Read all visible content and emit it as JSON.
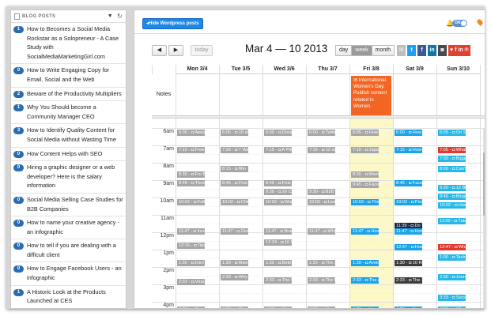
{
  "sidebar": {
    "title": "BLOG POSTS",
    "items": [
      {
        "count": "1",
        "text": "How to Becomes a Social Media Rockstar as a Solopreneur - A Case Study with SocialMediaMarketingGirl.com"
      },
      {
        "count": "0",
        "text": "How to Write Engaging Copy for Email, Social and the Web"
      },
      {
        "count": "2",
        "text": "Beware of the Productivity Multipliers"
      },
      {
        "count": "1",
        "text": "Why You Should become a Community Manager CEO"
      },
      {
        "count": "3",
        "text": "How to Identify Quality Content for Social Media without Wasting Time"
      },
      {
        "count": "0",
        "text": "How Content Helps with SEO"
      },
      {
        "count": "0",
        "text": "Hiring a graphic designer or a web developer? Here is the salary information"
      },
      {
        "count": "0",
        "text": "Social Media Selling Case Studies for B2B Companies"
      },
      {
        "count": "0",
        "text": "How to name your creative agency - an infographic"
      },
      {
        "count": "0",
        "text": "How to tell if you are dealing with a difficult client"
      },
      {
        "count": "0",
        "text": "How to Engage Facebook Users - an infographic"
      },
      {
        "count": "1",
        "text": "A Historic Look at the Products Launched at CES"
      }
    ]
  },
  "topbar": {
    "hide_button": "Hide Wordpress posts",
    "toggle": "ON"
  },
  "toolbar": {
    "prev": "◀",
    "next": "▶",
    "today": "today",
    "range_title": "Mar 4 — 10 2013",
    "views": [
      "day",
      "week",
      "month"
    ],
    "active_view": "week",
    "socials": [
      {
        "label": "✉",
        "color": "#bdbdbd"
      },
      {
        "label": "t",
        "color": "#1da1f2"
      },
      {
        "label": "f",
        "color": "#3b5998"
      },
      {
        "label": "in",
        "color": "#0e76a8"
      },
      {
        "label": "◙",
        "color": "#4a4a4a"
      },
      {
        "label": "♥ f in ℗",
        "color": "#e0402e"
      }
    ]
  },
  "calendar": {
    "notes_label": "Notes",
    "days": [
      "Mon 3/4",
      "Tue 3/5",
      "Wed 3/6",
      "Thu 3/7",
      "Fri 3/8",
      "Sat 3/9",
      "Sun 3/10"
    ],
    "hours": [
      "6am",
      "7am",
      "8am",
      "9am",
      "10am",
      "11am",
      "12pm",
      "1pm",
      "2pm",
      "3pm",
      "4pm"
    ],
    "note_event": "International Women's Day. Publish content related to Women.",
    "events": [
      {
        "day": 0,
        "hour": 6.0,
        "text": "6:00 - ◘ Awesom",
        "style": "gray"
      },
      {
        "day": 0,
        "hour": 7.0,
        "text": "7:15 - ◘ Free eB",
        "style": "gray"
      },
      {
        "day": 0,
        "hour": 8.4,
        "text": "8:30 - ◘ For B2B",
        "style": "gray"
      },
      {
        "day": 0,
        "hour": 8.9,
        "text": "8:45 - ◘ Three P",
        "style": "gray"
      },
      {
        "day": 0,
        "hour": 10.0,
        "text": "10:02 - ◘ Follow",
        "style": "gray"
      },
      {
        "day": 0,
        "hour": 11.7,
        "text": "11:47 - ◘ Invest",
        "style": "gray"
      },
      {
        "day": 0,
        "hour": 12.5,
        "text": "12:15 - ◘ Tips",
        "style": "gray"
      },
      {
        "day": 0,
        "hour": 13.5,
        "text": "1:30 - ◘ Intro t",
        "style": "gray"
      },
      {
        "day": 0,
        "hour": 14.6,
        "text": "2:33 - ◘ Viral Vid",
        "style": "gray"
      },
      {
        "day": 0,
        "hour": 16.2,
        "text": "4:00 - ◘ Dos",
        "style": "gray"
      },
      {
        "day": 1,
        "hour": 6.0,
        "text": "6:05 - ◘ 10 ste",
        "style": "gray"
      },
      {
        "day": 1,
        "hour": 7.0,
        "text": "7:30 - ◘ 7 Ways",
        "style": "gray"
      },
      {
        "day": 1,
        "hour": 8.1,
        "text": "8:15 - ◘ Min",
        "style": "gray"
      },
      {
        "day": 1,
        "hour": 8.9,
        "text": "8:45 - ◘ First Go",
        "style": "gray"
      },
      {
        "day": 1,
        "hour": 10.0,
        "text": "10:02 - ◘ Chine",
        "style": "gray"
      },
      {
        "day": 1,
        "hour": 11.7,
        "text": "11:47 - ◘ Giving",
        "style": "gray"
      },
      {
        "day": 1,
        "hour": 13.5,
        "text": "1:30 - ◘ Main st",
        "style": "gray"
      },
      {
        "day": 1,
        "hour": 14.3,
        "text": "2:33 - ◘ Why mi",
        "style": "gray"
      },
      {
        "day": 1,
        "hour": 16.2,
        "text": "4:00 - ◘ The 7 C",
        "style": "gray"
      },
      {
        "day": 2,
        "hour": 6.0,
        "text": "6:00 - ◘ Disney",
        "style": "gray"
      },
      {
        "day": 2,
        "hour": 7.0,
        "text": "7:15 - ◘ A Prime",
        "style": "gray"
      },
      {
        "day": 2,
        "hour": 8.9,
        "text": "8:45 - ◘ First Go",
        "style": "gray"
      },
      {
        "day": 2,
        "hour": 9.4,
        "text": "9:30 - ◘ 20 Cate",
        "style": "gray"
      },
      {
        "day": 2,
        "hour": 10.0,
        "text": "10:02 - ◘ Wome",
        "style": "gray"
      },
      {
        "day": 2,
        "hour": 11.7,
        "text": "11:47 - ◘ Brain",
        "style": "gray"
      },
      {
        "day": 2,
        "hour": 12.3,
        "text": "12:24 - ◘ 10 Su",
        "style": "gray"
      },
      {
        "day": 2,
        "hour": 13.5,
        "text": "1:30 - ◘ Beth Go",
        "style": "gray"
      },
      {
        "day": 2,
        "hour": 14.5,
        "text": "2:33 - ◘ The S",
        "style": "gray"
      },
      {
        "day": 2,
        "hour": 16.2,
        "text": "4:00 - ◘ Wome",
        "style": "gray"
      },
      {
        "day": 3,
        "hour": 6.0,
        "text": "6:00 - ◘ Twitter",
        "style": "gray"
      },
      {
        "day": 3,
        "hour": 7.0,
        "text": "7:15 - ◘ 12 soci",
        "style": "gray"
      },
      {
        "day": 3,
        "hour": 9.4,
        "text": "9:30 - ◘ B2B Lea",
        "style": "gray"
      },
      {
        "day": 3,
        "hour": 10.0,
        "text": "10:02 - ◘ Learn",
        "style": "gray"
      },
      {
        "day": 3,
        "hour": 11.7,
        "text": "11:47 - ◘ Why M",
        "style": "gray"
      },
      {
        "day": 3,
        "hour": 13.5,
        "text": "1:30 - ◘ The 3 G",
        "style": "gray"
      },
      {
        "day": 3,
        "hour": 14.5,
        "text": "2:33 - ◘ The Ne",
        "style": "gray"
      },
      {
        "day": 3,
        "hour": 16.2,
        "text": "4:00 - ◘ How C",
        "style": "gray"
      },
      {
        "day": 4,
        "hour": 6.0,
        "text": "6:05 - ◘ How to",
        "style": "gray"
      },
      {
        "day": 4,
        "hour": 7.0,
        "text": "7:15 - ◘ Japan",
        "style": "gray"
      },
      {
        "day": 4,
        "hour": 8.4,
        "text": "8:30 - ◘ Meet D",
        "style": "gray"
      },
      {
        "day": 4,
        "hour": 9.0,
        "text": "9:45 - ◘ Facebo",
        "style": "gray"
      },
      {
        "day": 4,
        "hour": 10.0,
        "text": "10:02 - ◘ The ret",
        "style": "blue"
      },
      {
        "day": 4,
        "hour": 11.7,
        "text": "11:47 - ◘ How to",
        "style": "blue"
      },
      {
        "day": 4,
        "hour": 13.5,
        "text": "1:30 - ◘ Avoidin",
        "style": "blue"
      },
      {
        "day": 4,
        "hour": 14.5,
        "text": "2:33 - ◘ The Adv",
        "style": "blue"
      },
      {
        "day": 4,
        "hour": 16.2,
        "text": "4:20 - ◘ How Go",
        "style": "blue"
      },
      {
        "day": 5,
        "hour": 6.0,
        "text": "6:00 - ◘ How to",
        "style": "blue"
      },
      {
        "day": 5,
        "hour": 7.0,
        "text": "7:15 - ◘ How Pe",
        "style": "blue"
      },
      {
        "day": 5,
        "hour": 8.9,
        "text": "8:45 - ◘ Facebo",
        "style": "blue"
      },
      {
        "day": 5,
        "hour": 10.0,
        "text": "10:02 - ◘ Pixar's",
        "style": "blue"
      },
      {
        "day": 5,
        "hour": 11.35,
        "text": "11:39 - ◘ Do You",
        "style": "navy"
      },
      {
        "day": 5,
        "hour": 11.7,
        "text": "11:47 - ◘ How to",
        "style": "blue"
      },
      {
        "day": 5,
        "hour": 12.6,
        "text": "12:47 - ◘ How to",
        "style": "blue"
      },
      {
        "day": 5,
        "hour": 13.5,
        "text": "1:30 - ◘ 10 Rea",
        "style": "dark"
      },
      {
        "day": 5,
        "hour": 14.5,
        "text": "2:33 - ◘ The 10",
        "style": "dark"
      },
      {
        "day": 5,
        "hour": 16.2,
        "text": "4:20 - ◘ You Car",
        "style": "blue"
      },
      {
        "day": 6,
        "hour": 6.0,
        "text": "6:05 - ◘ On Soci",
        "style": "cyan"
      },
      {
        "day": 6,
        "hour": 7.0,
        "text": "7:05 - ◘ What",
        "style": "red"
      },
      {
        "day": 6,
        "hour": 7.5,
        "text": "7:30 - ◘ Bigger",
        "style": "cyan"
      },
      {
        "day": 6,
        "hour": 8.1,
        "text": "8:00 - ◘ Can't C",
        "style": "cyan"
      },
      {
        "day": 6,
        "hour": 9.2,
        "text": "9:30 - ◘ 12 Blog",
        "style": "cyan"
      },
      {
        "day": 6,
        "hour": 9.7,
        "text": "9:45 - ◘ Blogs",
        "style": "cyan"
      },
      {
        "day": 6,
        "hour": 10.2,
        "text": "10:02 - ◘ How to",
        "style": "cyan"
      },
      {
        "day": 6,
        "hour": 11.1,
        "text": "11:00 - ◘ Tutori",
        "style": "cyan"
      },
      {
        "day": 6,
        "hour": 12.6,
        "text": "12:47 - ◘ What",
        "style": "red"
      },
      {
        "day": 6,
        "hour": 13.2,
        "text": "1:00 - ◘ Techni",
        "style": "cyan"
      },
      {
        "day": 6,
        "hour": 14.3,
        "text": "2:30 - ◘ Journa",
        "style": "cyan"
      },
      {
        "day": 6,
        "hour": 15.5,
        "text": "3:33 - ◘ Sociali",
        "style": "cyan"
      },
      {
        "day": 6,
        "hour": 16.2,
        "text": "4:00 - ◘ What",
        "style": "cyan"
      }
    ]
  }
}
